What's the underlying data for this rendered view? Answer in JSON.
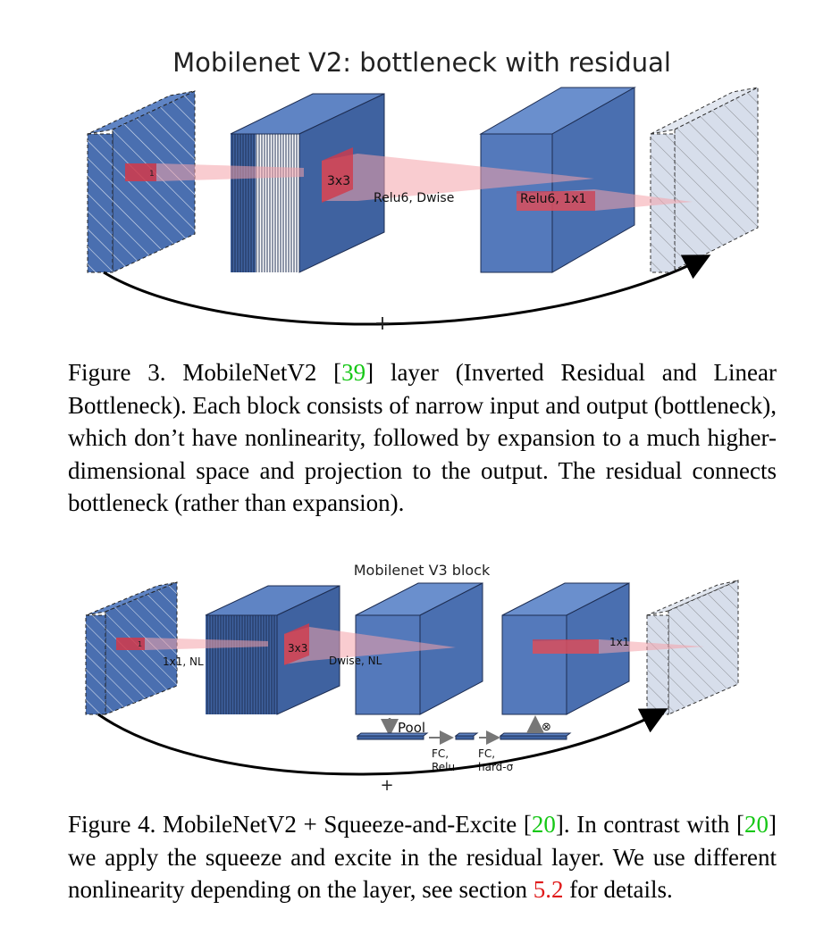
{
  "figure3": {
    "title": "Mobilenet V2: bottleneck with residual",
    "labels": {
      "input_kernel": "1",
      "dwise_kernel": "3x3",
      "dwise_op": "Relu6, Dwise",
      "proj_op": "Relu6, 1x1",
      "residual": "+"
    },
    "caption": {
      "prefix": "Figure 3. MobileNetV2 [",
      "ref": "39",
      "suffix": "] layer (Inverted Residual and Linear Bottleneck). Each block consists of narrow input and output (bottleneck), which don’t have nonlinearity, followed by expansion to a much higher-dimensional space and projection to the output. The residual connects bottleneck (rather than expansion)."
    }
  },
  "figure4": {
    "title": "Mobilenet V3 block",
    "labels": {
      "input_kernel": "1",
      "expand_op": "1x1, NL",
      "dwise_kernel": "3x3",
      "dwise_op": "Dwise, NL",
      "proj_kernel": "1x1",
      "pool": "Pool",
      "excite": "⊗",
      "fc1_line1": "FC,",
      "fc1_line2": "Relu",
      "fc2_line1": "FC,",
      "fc2_line2": "hard-σ",
      "residual": "+"
    },
    "caption": {
      "p1": "Figure 4. MobileNetV2 + Squeeze-and-Excite [",
      "ref1": "20",
      "p2": "]. In contrast with [",
      "ref2": "20",
      "p3": "] we apply the squeeze and excite in the residual layer. We use different nonlinearity depending on the layer, see section ",
      "ref3": "5.2",
      "p4": " for details."
    }
  },
  "colors": {
    "block_front": "#4a6fb0",
    "block_top": "#5f84c4",
    "block_side": "#3f62a0",
    "light_block": "#d7deeb",
    "kernel_red": "#d23a4a",
    "link_green": "#16c716",
    "link_red": "#e01b1b"
  }
}
